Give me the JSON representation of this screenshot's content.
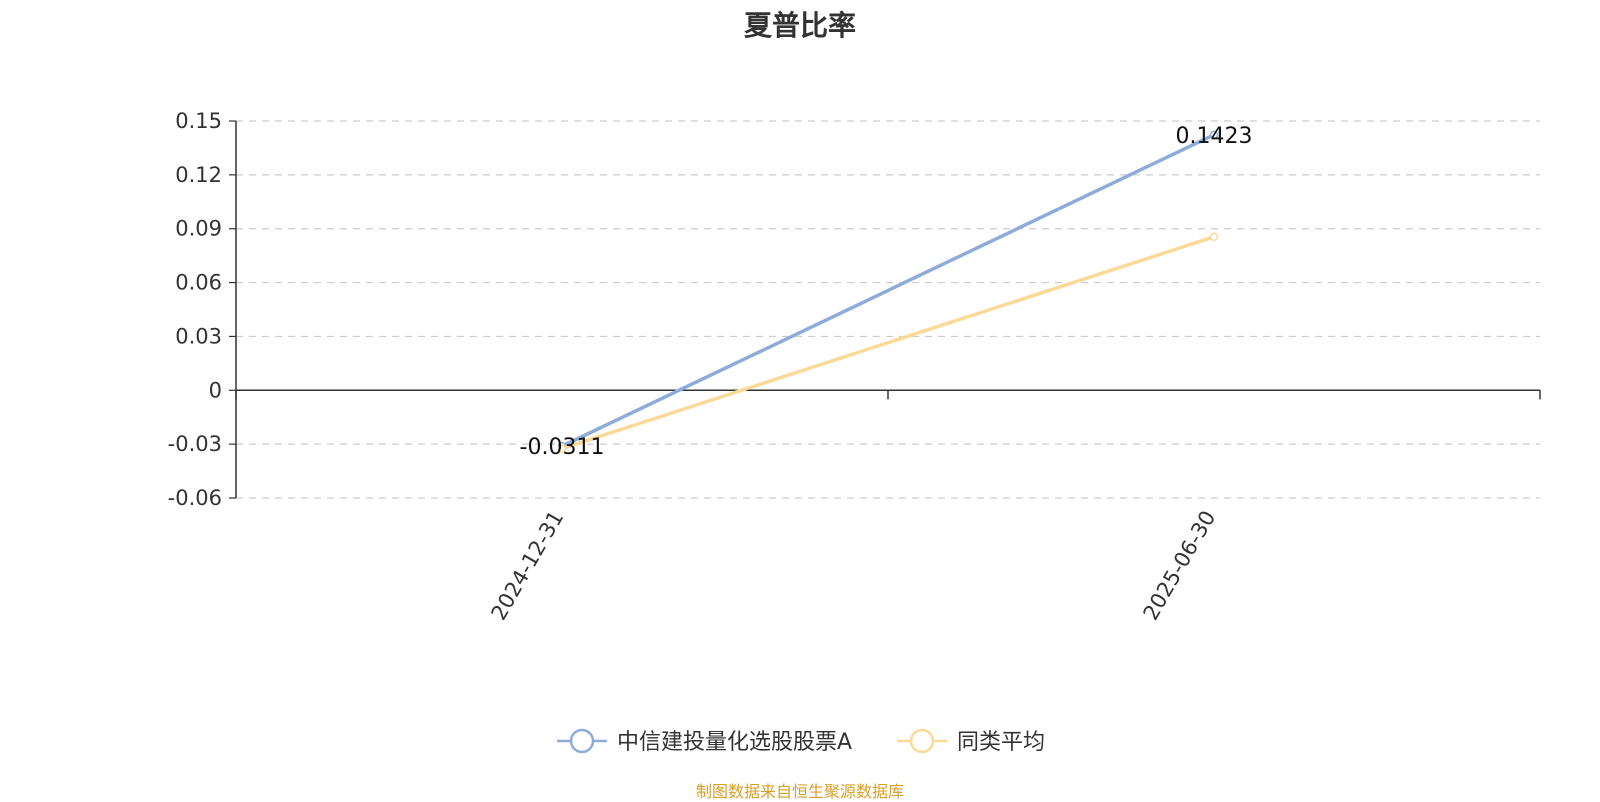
{
  "chart_data": {
    "type": "line",
    "title": "夏普比率",
    "x": [
      "2024-12-31",
      "2025-06-30"
    ],
    "series": [
      {
        "name": "中信建投量化选股股票A",
        "values": [
          -0.0311,
          0.1423
        ],
        "color": "#8eacd9"
      },
      {
        "name": "同类平均",
        "values": [
          -0.0325,
          0.0855
        ],
        "color": "#fbd996"
      }
    ],
    "data_labels": [
      "-0.0311",
      "0.1423"
    ],
    "yticks": [
      "0.15",
      "0.12",
      "0.09",
      "0.06",
      "0.03",
      "0",
      "-0.03",
      "-0.06"
    ],
    "ylim": [
      -0.06,
      0.15
    ],
    "grid": true,
    "legend_position": "bottom"
  },
  "footer": {
    "text": "制图数据来自恒生聚源数据库",
    "color": "#d4a12b"
  }
}
